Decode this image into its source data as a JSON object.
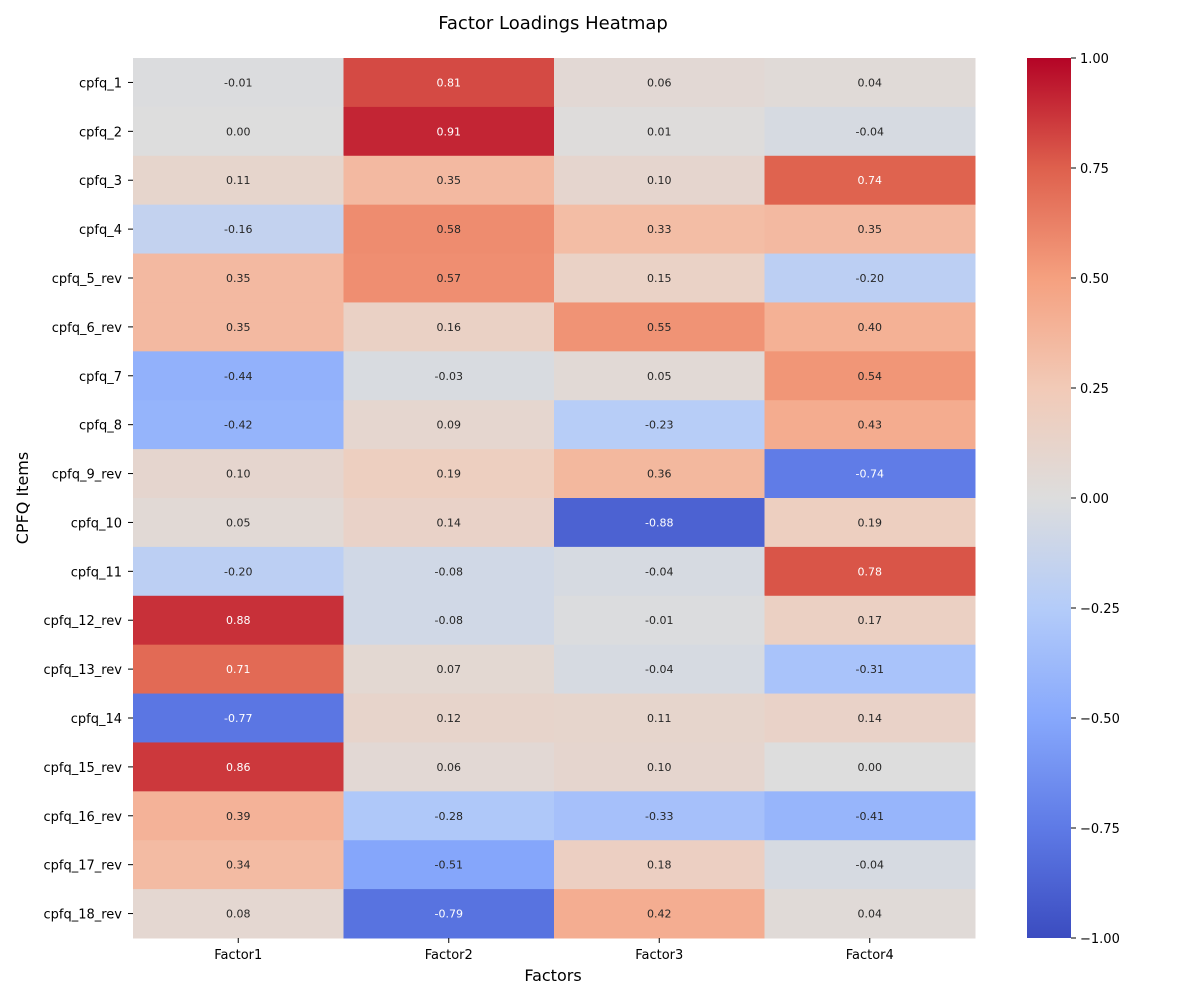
{
  "chart_data": {
    "type": "heatmap",
    "title": "Factor Loadings Heatmap",
    "xlabel": "Factors",
    "ylabel": "CPFQ Items",
    "columns": [
      "Factor1",
      "Factor2",
      "Factor3",
      "Factor4"
    ],
    "rows": [
      "cpfq_1",
      "cpfq_2",
      "cpfq_3",
      "cpfq_4",
      "cpfq_5_rev",
      "cpfq_6_rev",
      "cpfq_7",
      "cpfq_8",
      "cpfq_9_rev",
      "cpfq_10",
      "cpfq_11",
      "cpfq_12_rev",
      "cpfq_13_rev",
      "cpfq_14",
      "cpfq_15_rev",
      "cpfq_16_rev",
      "cpfq_17_rev",
      "cpfq_18_rev"
    ],
    "values": [
      [
        -0.01,
        0.81,
        0.06,
        0.04
      ],
      [
        0.0,
        0.91,
        0.01,
        -0.04
      ],
      [
        0.11,
        0.35,
        0.1,
        0.74
      ],
      [
        -0.16,
        0.58,
        0.33,
        0.35
      ],
      [
        0.35,
        0.57,
        0.15,
        -0.2
      ],
      [
        0.35,
        0.16,
        0.55,
        0.4
      ],
      [
        -0.44,
        -0.03,
        0.05,
        0.54
      ],
      [
        -0.42,
        0.09,
        -0.23,
        0.43
      ],
      [
        0.1,
        0.19,
        0.36,
        -0.74
      ],
      [
        0.05,
        0.14,
        -0.88,
        0.19
      ],
      [
        -0.2,
        -0.08,
        -0.04,
        0.78
      ],
      [
        0.88,
        -0.08,
        -0.01,
        0.17
      ],
      [
        0.71,
        0.07,
        -0.04,
        -0.31
      ],
      [
        -0.77,
        0.12,
        0.11,
        0.14
      ],
      [
        0.86,
        0.06,
        0.1,
        0.0
      ],
      [
        0.39,
        -0.28,
        -0.33,
        -0.41
      ],
      [
        0.34,
        -0.51,
        0.18,
        -0.04
      ],
      [
        0.08,
        -0.79,
        0.42,
        0.04
      ]
    ],
    "colormap": "coolwarm",
    "vmin": -1.0,
    "vmax": 1.0,
    "colorbar_ticks": [
      "1.00",
      "0.75",
      "0.50",
      "0.25",
      "0.00",
      "−0.25",
      "−0.50",
      "−0.75",
      "−1.00"
    ],
    "colorbar_tick_values": [
      1.0,
      0.75,
      0.5,
      0.25,
      0.0,
      -0.25,
      -0.5,
      -0.75,
      -1.0
    ]
  }
}
